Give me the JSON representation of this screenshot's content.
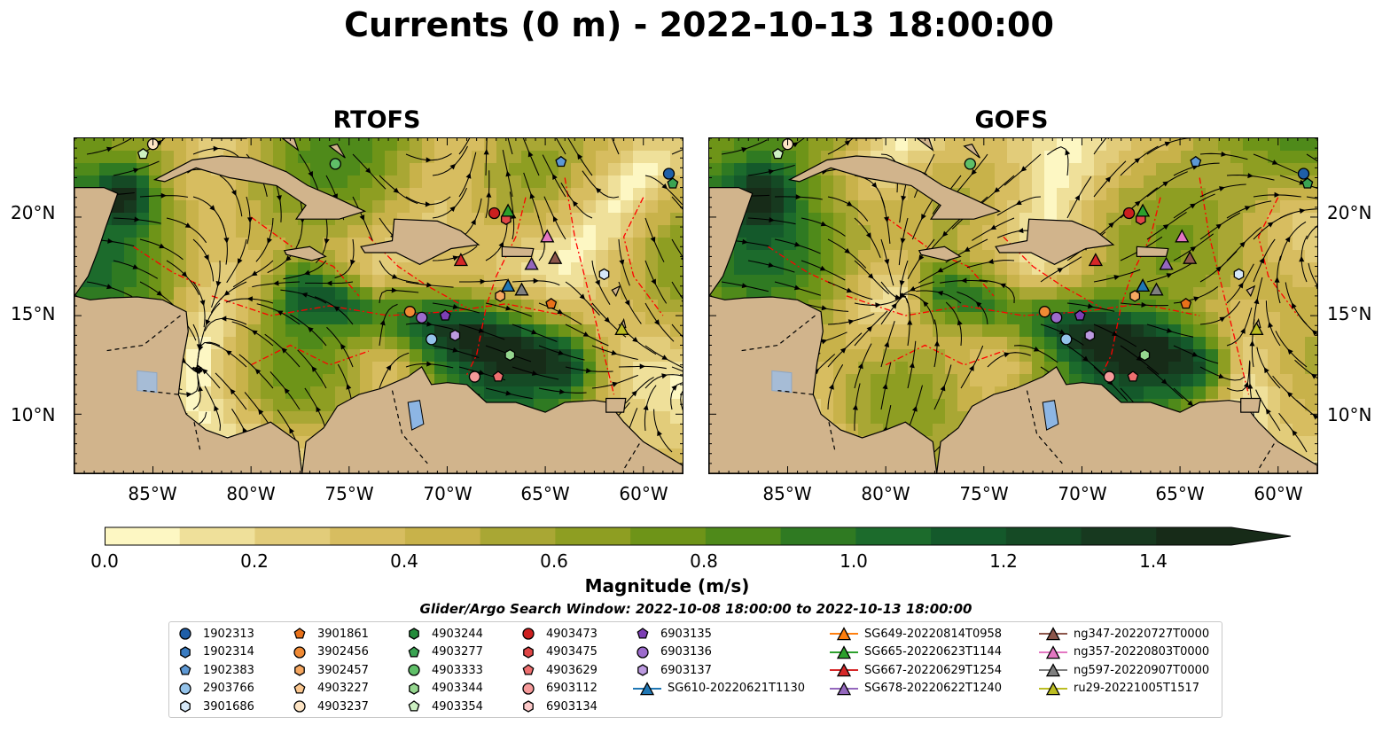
{
  "title": "Currents (0 m) - 2022-10-13 18:00:00",
  "panels": [
    {
      "title": "RTOFS",
      "key": "rtofs"
    },
    {
      "title": "GOFS",
      "key": "gofs"
    }
  ],
  "lat_ticks": [
    "20°N",
    "15°N",
    "10°N"
  ],
  "lon_ticks": [
    "85°W",
    "80°W",
    "75°W",
    "70°W",
    "65°W",
    "60°W"
  ],
  "colorbar": {
    "label": "Magnitude (m/s)",
    "ticks": [
      "0.0",
      "0.2",
      "0.4",
      "0.6",
      "0.8",
      "1.0",
      "1.2",
      "1.4"
    ],
    "range": [
      0,
      1.5
    ],
    "extend": "max",
    "colors": [
      "#fdf7c3",
      "#efe09a",
      "#e2cc7a",
      "#d7bd60",
      "#c8b24a",
      "#a9a734",
      "#8e9e22",
      "#6e9418",
      "#4f8a1a",
      "#2f7a22",
      "#1c6b2c",
      "#14592b",
      "#154a25",
      "#17391f",
      "#172b18"
    ]
  },
  "search_window": "Glider/Argo Search Window: 2022-10-08 18:00:00 to 2022-10-13 18:00:00",
  "legend": {
    "columns": [
      [
        {
          "label": "1902313",
          "marker": "circle",
          "color": "#1f5fa8"
        },
        {
          "label": "1902314",
          "marker": "hexagon",
          "color": "#3a7cc2"
        },
        {
          "label": "1902383",
          "marker": "pentagon",
          "color": "#5d98d4"
        },
        {
          "label": "2903766",
          "marker": "circle",
          "color": "#94c3ea"
        },
        {
          "label": "3901686",
          "marker": "hexagon",
          "color": "#d6e8f8"
        }
      ],
      [
        {
          "label": "3901861",
          "marker": "pentagon",
          "color": "#e8711a"
        },
        {
          "label": "3902456",
          "marker": "circle",
          "color": "#f08a34"
        },
        {
          "label": "3902457",
          "marker": "hexagon",
          "color": "#f6a760"
        },
        {
          "label": "4903227",
          "marker": "pentagon",
          "color": "#fbc78f"
        },
        {
          "label": "4903237",
          "marker": "circle",
          "color": "#fde4c4"
        }
      ],
      [
        {
          "label": "4903244",
          "marker": "hexagon",
          "color": "#238b3a"
        },
        {
          "label": "4903277",
          "marker": "pentagon",
          "color": "#3aa352"
        },
        {
          "label": "4903333",
          "marker": "circle",
          "color": "#5fbf68"
        },
        {
          "label": "4903344",
          "marker": "hexagon",
          "color": "#95d68f"
        },
        {
          "label": "4903354",
          "marker": "pentagon",
          "color": "#cdf0c2"
        }
      ],
      [
        {
          "label": "4903473",
          "marker": "circle",
          "color": "#cc1f1f"
        },
        {
          "label": "4903475",
          "marker": "hexagon",
          "color": "#e04646"
        },
        {
          "label": "4903629",
          "marker": "pentagon",
          "color": "#ee6f6f"
        },
        {
          "label": "6903112",
          "marker": "circle",
          "color": "#f69a9a"
        },
        {
          "label": "6903134",
          "marker": "hexagon",
          "color": "#fcc9c9"
        }
      ],
      [
        {
          "label": "6903135",
          "marker": "pentagon",
          "color": "#7d3fb5"
        },
        {
          "label": "6903136",
          "marker": "circle",
          "color": "#9c6bcc"
        },
        {
          "label": "6903137",
          "marker": "hexagon",
          "color": "#bc9ae0"
        },
        {
          "label": "SG610-20220621T1130",
          "marker": "triangle-line",
          "color": "#1f77b4"
        }
      ],
      [
        {
          "label": "SG649-20220814T0958",
          "marker": "triangle-line",
          "color": "#ff7f0e"
        },
        {
          "label": "SG665-20220623T1144",
          "marker": "triangle-line",
          "color": "#2ca02c"
        },
        {
          "label": "SG667-20220629T1254",
          "marker": "triangle-line",
          "color": "#d62728"
        },
        {
          "label": "SG678-20220622T1240",
          "marker": "triangle-line",
          "color": "#9467bd"
        }
      ],
      [
        {
          "label": "ng347-20220727T0000",
          "marker": "triangle-line",
          "color": "#8c564b"
        },
        {
          "label": "ng357-20220803T0000",
          "marker": "triangle-line",
          "color": "#e377c2"
        },
        {
          "label": "ng597-20220907T0000",
          "marker": "triangle-line",
          "color": "#7f7f7f"
        },
        {
          "label": "ru29-20221005T1517",
          "marker": "triangle-line",
          "color": "#bcbd22"
        }
      ]
    ]
  },
  "map_extent": {
    "lon": [
      -89,
      -58
    ],
    "lat": [
      7,
      24
    ]
  },
  "land_color": "#d1b48c",
  "eez_color": "#ff0000",
  "observations": [
    {
      "id": "1902313",
      "lon": -58.7,
      "lat": 22.2
    },
    {
      "id": "4903277",
      "lon": -58.5,
      "lat": 21.7
    },
    {
      "id": "1902383",
      "lon": -64.2,
      "lat": 22.8
    },
    {
      "id": "4903354",
      "lon": -85.5,
      "lat": 23.2
    },
    {
      "id": "4903237",
      "lon": -85.0,
      "lat": 23.7
    },
    {
      "id": "4903333",
      "lon": -75.7,
      "lat": 22.7
    },
    {
      "id": "4903473",
      "lon": -67.6,
      "lat": 20.2
    },
    {
      "id": "4903475",
      "lon": -67.0,
      "lat": 19.9
    },
    {
      "id": "SG665-20220623T1144",
      "lon": -66.9,
      "lat": 20.3
    },
    {
      "id": "ng357-20220803T0000",
      "lon": -64.9,
      "lat": 19.0
    },
    {
      "id": "SG667-20220629T1254",
      "lon": -69.3,
      "lat": 17.8
    },
    {
      "id": "SG678-20220622T1240",
      "lon": -65.7,
      "lat": 17.6
    },
    {
      "id": "ng347-20220727T0000",
      "lon": -64.5,
      "lat": 17.9
    },
    {
      "id": "3901686",
      "lon": -62.0,
      "lat": 17.1
    },
    {
      "id": "SG610-20220621T1130",
      "lon": -66.9,
      "lat": 16.5
    },
    {
      "id": "ng597-20220907T0000",
      "lon": -66.2,
      "lat": 16.3
    },
    {
      "id": "3902457",
      "lon": -67.3,
      "lat": 16.0
    },
    {
      "id": "3901861",
      "lon": -64.7,
      "lat": 15.6
    },
    {
      "id": "3902456",
      "lon": -71.9,
      "lat": 15.2
    },
    {
      "id": "6903136",
      "lon": -71.3,
      "lat": 14.9
    },
    {
      "id": "6903135",
      "lon": -70.1,
      "lat": 15.0
    },
    {
      "id": "2903766",
      "lon": -70.8,
      "lat": 13.8
    },
    {
      "id": "6903137",
      "lon": -69.6,
      "lat": 14.0
    },
    {
      "id": "4903344",
      "lon": -66.8,
      "lat": 13.0
    },
    {
      "id": "6903112",
      "lon": -68.6,
      "lat": 11.9
    },
    {
      "id": "4903629",
      "lon": -67.4,
      "lat": 11.9
    },
    {
      "id": "ru29-20221005T1517",
      "lon": -61.1,
      "lat": 14.3
    }
  ]
}
